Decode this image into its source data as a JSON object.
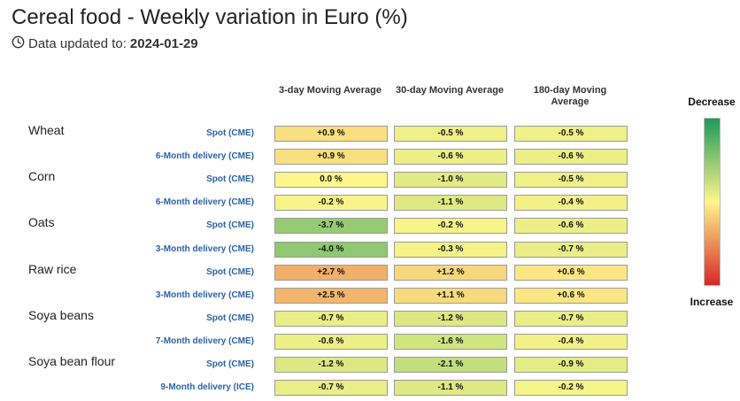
{
  "title": "Cereal food - Weekly variation in Euro (%)",
  "updated_label": "Data updated to:",
  "updated_date": "2024-01-29",
  "chart_data": {
    "type": "table",
    "columns": [
      "3-day Moving Average",
      "30-day Moving Average",
      "180-day Moving Average"
    ],
    "rows": [
      {
        "product": "Wheat",
        "delivery": "Spot (CME)",
        "labels": [
          "+0.9 %",
          "-0.5 %",
          "-0.5 %"
        ],
        "values": [
          0.9,
          -0.5,
          -0.5
        ]
      },
      {
        "product": "",
        "delivery": "6-Month delivery (CME)",
        "labels": [
          "+0.9 %",
          "-0.6 %",
          "-0.6 %"
        ],
        "values": [
          0.9,
          -0.6,
          -0.6
        ]
      },
      {
        "product": "Corn",
        "delivery": "Spot (CME)",
        "labels": [
          "0.0 %",
          "-1.0 %",
          "-0.5 %"
        ],
        "values": [
          0.0,
          -1.0,
          -0.5
        ]
      },
      {
        "product": "",
        "delivery": "6-Month delivery (CME)",
        "labels": [
          "-0.2 %",
          "-1.1 %",
          "-0.4 %"
        ],
        "values": [
          -0.2,
          -1.1,
          -0.4
        ]
      },
      {
        "product": "Oats",
        "delivery": "Spot (CME)",
        "labels": [
          "-3.7 %",
          "-0.2 %",
          "-0.6 %"
        ],
        "values": [
          -3.7,
          -0.2,
          -0.6
        ]
      },
      {
        "product": "",
        "delivery": "3-Month delivery (CME)",
        "labels": [
          "-4.0 %",
          "-0.3 %",
          "-0.7 %"
        ],
        "values": [
          -4.0,
          -0.3,
          -0.7
        ]
      },
      {
        "product": "Raw rice",
        "delivery": "Spot (CME)",
        "labels": [
          "+2.7 %",
          "+1.2 %",
          "+0.6 %"
        ],
        "values": [
          2.7,
          1.2,
          0.6
        ]
      },
      {
        "product": "",
        "delivery": "3-Month delivery (CME)",
        "labels": [
          "+2.5 %",
          "+1.1 %",
          "+0.6 %"
        ],
        "values": [
          2.5,
          1.1,
          0.6
        ]
      },
      {
        "product": "Soya beans",
        "delivery": "Spot (CME)",
        "labels": [
          "-0.7 %",
          "-1.2 %",
          "-0.7 %"
        ],
        "values": [
          -0.7,
          -1.2,
          -0.7
        ]
      },
      {
        "product": "",
        "delivery": "7-Month delivery (CME)",
        "labels": [
          "-0.6 %",
          "-1.6 %",
          "-0.4 %"
        ],
        "values": [
          -0.6,
          -1.6,
          -0.4
        ]
      },
      {
        "product": "Soya bean flour",
        "delivery": "Spot (CME)",
        "labels": [
          "-1.2 %",
          "-2.1 %",
          "-0.9 %"
        ],
        "values": [
          -1.2,
          -2.1,
          -0.9
        ]
      },
      {
        "product": "",
        "delivery": "9-Month delivery (ICE)",
        "labels": [
          "-0.7 %",
          "-1.1 %",
          "-0.2 %"
        ],
        "values": [
          -0.7,
          -1.1,
          -0.2
        ]
      }
    ],
    "legend": {
      "top": "Decrease",
      "bottom": "Increase"
    },
    "colors": {
      "decrease": "#1e9a5a",
      "neutral": "#fdf68a",
      "increase": "#d7282a"
    }
  }
}
